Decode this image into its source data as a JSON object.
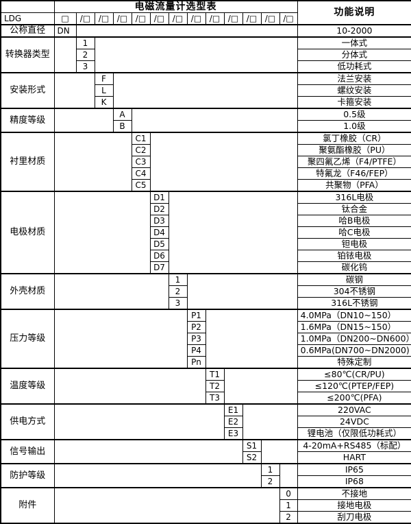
{
  "table_title": "电磁流量计选型表",
  "function_column_header": "功能说明",
  "model_prefix": "LDG",
  "base_box": "□",
  "slot_box": "/□",
  "slot_count": 12,
  "categories": [
    {
      "label": "公称直径",
      "items": [
        {
          "code": "DN",
          "desc": "10-2000"
        }
      ]
    },
    {
      "label": "转换器类型",
      "items": [
        {
          "code": "1",
          "desc": "一体式"
        },
        {
          "code": "2",
          "desc": "分体式"
        },
        {
          "code": "3",
          "desc": "低功耗式"
        }
      ]
    },
    {
      "label": "安装形式",
      "items": [
        {
          "code": "F",
          "desc": "法兰安装"
        },
        {
          "code": "L",
          "desc": "螺纹安装"
        },
        {
          "code": "K",
          "desc": "卡箍安装"
        }
      ]
    },
    {
      "label": "精度等级",
      "items": [
        {
          "code": "A",
          "desc": "0.5级"
        },
        {
          "code": "B",
          "desc": "1.0级"
        }
      ]
    },
    {
      "label": "衬里材质",
      "items": [
        {
          "code": "C1",
          "desc": "氯丁橡胶（CR）"
        },
        {
          "code": "C2",
          "desc": "聚氨酯橡胶（PU）"
        },
        {
          "code": "C3",
          "desc": "聚四氟乙烯（F4/PTFE）"
        },
        {
          "code": "C4",
          "desc": "特氟龙（F46/FEP）"
        },
        {
          "code": "C5",
          "desc": "共聚物（PFA）"
        }
      ]
    },
    {
      "label": "电极材质",
      "items": [
        {
          "code": "D1",
          "desc": "316L电极"
        },
        {
          "code": "D2",
          "desc": "钛合金"
        },
        {
          "code": "D3",
          "desc": "哈B电极"
        },
        {
          "code": "D4",
          "desc": "哈C电极"
        },
        {
          "code": "D5",
          "desc": "钽电极"
        },
        {
          "code": "D6",
          "desc": "铂铱电极"
        },
        {
          "code": "D7",
          "desc": "碳化钨"
        }
      ]
    },
    {
      "label": "外壳材质",
      "items": [
        {
          "code": "1",
          "desc": "碳钢"
        },
        {
          "code": "2",
          "desc": "304不锈钢"
        },
        {
          "code": "3",
          "desc": "316L不锈钢"
        }
      ]
    },
    {
      "label": "压力等级",
      "items": [
        {
          "code": "P1",
          "desc": "4.0MPa（DN10~150）",
          "align": "left"
        },
        {
          "code": "P2",
          "desc": "1.6MPa（DN15~150）",
          "align": "left"
        },
        {
          "code": "P3",
          "desc": "1.0MPa（DN200~DN600）",
          "align": "left"
        },
        {
          "code": "P4",
          "desc": "0.6MPa(DN700~DN2000)",
          "align": "left"
        },
        {
          "code": "Pn",
          "desc": "特殊定制"
        }
      ]
    },
    {
      "label": "温度等级",
      "items": [
        {
          "code": "T1",
          "desc": "≤80℃(CR/PU)"
        },
        {
          "code": "T2",
          "desc": "≤120℃(PTEP/FEP)"
        },
        {
          "code": "T3",
          "desc": "≤200℃(PFA)"
        }
      ]
    },
    {
      "label": "供电方式",
      "items": [
        {
          "code": "E1",
          "desc": "220VAC"
        },
        {
          "code": "E2",
          "desc": "24VDC"
        },
        {
          "code": "E3",
          "desc": "锂电池（仅限低功耗式）"
        }
      ]
    },
    {
      "label": "信号输出",
      "items": [
        {
          "code": "S1",
          "desc": "4-20mA+RS485（标配）"
        },
        {
          "code": "S2",
          "desc": "HART"
        }
      ]
    },
    {
      "label": "防护等级",
      "items": [
        {
          "code": "1",
          "desc": "IP65"
        },
        {
          "code": "2",
          "desc": "IP68"
        }
      ]
    },
    {
      "label": "附件",
      "items": [
        {
          "code": "0",
          "desc": "不接地"
        },
        {
          "code": "1",
          "desc": "接地电极"
        },
        {
          "code": "2",
          "desc": "刮刀电极"
        }
      ]
    }
  ],
  "colors": {
    "border": "#000000",
    "background": "#ffffff",
    "text": "#000000"
  }
}
